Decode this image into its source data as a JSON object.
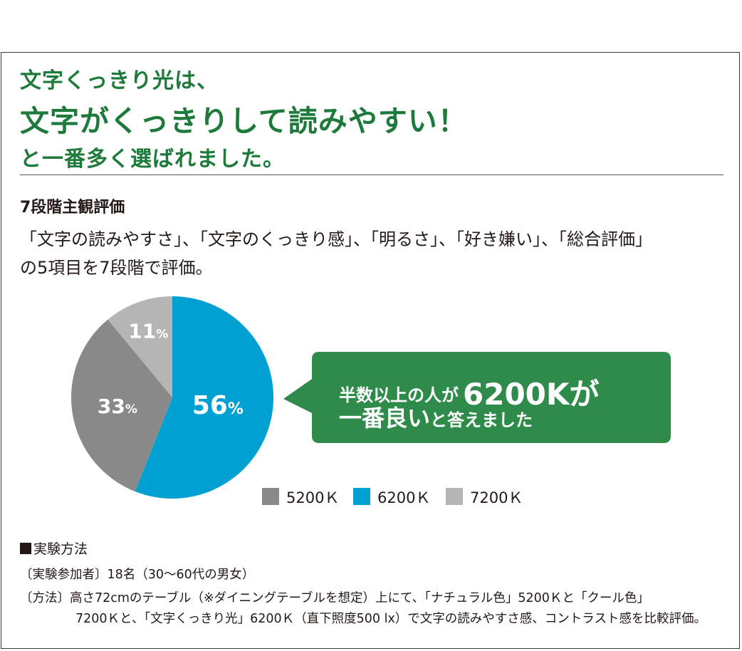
{
  "headline": {
    "line1": "文字くっきり光は、",
    "line2": "文字がくっきりして読みやすい！",
    "line3": "と一番多く選ばれました。"
  },
  "section": {
    "title": "7段階主観評価",
    "desc_line1": "「文字の読みやすさ」、「文字のくっきり感」、「明るさ」、「好き嫌い」、「総合評価」",
    "desc_line2": "の5項目を7段階で評価。"
  },
  "callout": {
    "part1": "半数以上の人が",
    "part2": "6200Kが",
    "part3": "一番良い",
    "part4": "と答えました"
  },
  "chart_data": {
    "type": "pie",
    "slices": [
      {
        "name": "6200Ｋ",
        "value": 56,
        "label": "56",
        "unit": "%",
        "color": "#00a0d2"
      },
      {
        "name": "5200Ｋ",
        "value": 33,
        "label": "33",
        "unit": "%",
        "color": "#898989"
      },
      {
        "name": "7200Ｋ",
        "value": 11,
        "label": "11",
        "unit": "%",
        "color": "#b5b5b6"
      }
    ],
    "legend_order": [
      1,
      0,
      2
    ],
    "legend_position": "bottom-right",
    "callout_color": "#2e8b4a"
  },
  "method": {
    "title": "実験方法",
    "line1": "〔実験参加者〕18名（30〜60代の男女）",
    "line2": "〔方法〕高さ72cmのテーブル（※ダイニングテーブルを想定）上にて、「ナチュラル色」5200Ｋと「クール色」",
    "line3": "7200Ｋと、「文字くっきり光」6200Ｋ（直下照度500 lx）で文字の読みやすさ感、コントラスト感を比較評価。"
  },
  "colors": {
    "headline": "#1e7a3a",
    "text": "#231815",
    "frame": "#3a3a3a"
  }
}
